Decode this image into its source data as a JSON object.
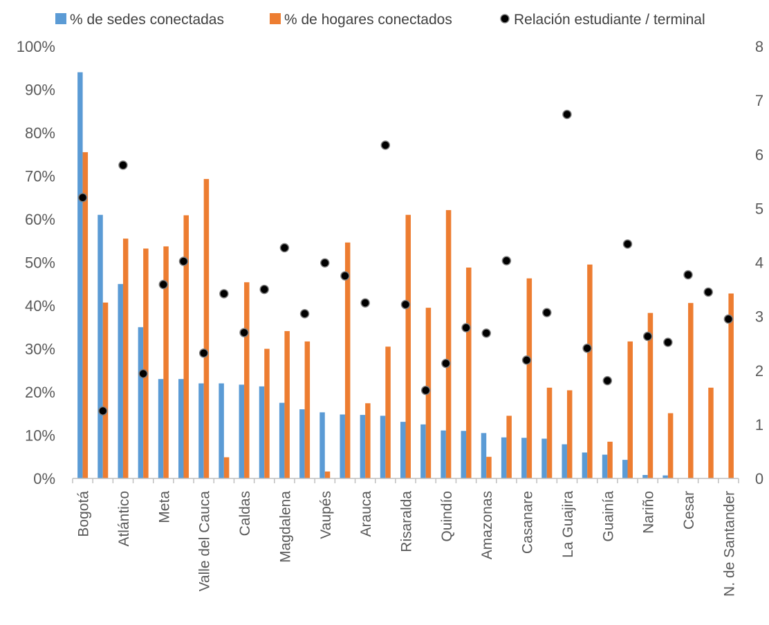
{
  "chart_data": {
    "type": "bar",
    "categories": [
      "Bogotá",
      "",
      "Atlántico",
      "",
      "Meta",
      "",
      "Valle del Cauca",
      "",
      "Caldas",
      "",
      "Magdalena",
      "",
      "Vaupés",
      "",
      "Arauca",
      "",
      "Risaralda",
      "",
      "Quindío",
      "",
      "Amazonas",
      "",
      "Casanare",
      "",
      "La Guajira",
      "",
      "Guainía",
      "",
      "Nariño",
      "",
      "Cesar",
      "",
      "N. de Santander"
    ],
    "series": [
      {
        "name": "% de sedes conectadas",
        "axis": "left",
        "chart_type": "bar",
        "color": "#5B9BD5",
        "values": [
          94,
          61,
          45,
          35,
          23,
          23,
          22,
          22,
          21.7,
          21.3,
          17.5,
          16,
          15.3,
          14.8,
          14.7,
          14.5,
          13.1,
          12.5,
          11.1,
          11,
          10.5,
          9.5,
          9.4,
          9.2,
          7.9,
          6,
          5.5,
          4.3,
          0.8,
          0.7,
          0,
          0,
          0
        ]
      },
      {
        "name": "% de hogares conectados",
        "axis": "left",
        "chart_type": "bar",
        "color": "#ED7D31",
        "values": [
          75.5,
          40.7,
          55.5,
          53.2,
          53.7,
          60.9,
          69.3,
          4.9,
          45.4,
          30,
          34.1,
          31.7,
          1.6,
          54.6,
          17.4,
          30.5,
          61,
          39.5,
          62.1,
          48.8,
          5,
          14.5,
          46.3,
          21,
          20.4,
          49.5,
          8.5,
          31.7,
          38.3,
          15.1,
          40.6,
          21,
          42.8
        ]
      },
      {
        "name": "Relación estudiante / terminal",
        "axis": "right",
        "chart_type": "scatter",
        "color": "#000000",
        "values": [
          5.2,
          1.25,
          5.8,
          1.94,
          3.59,
          4.02,
          2.32,
          3.42,
          2.7,
          3.5,
          4.27,
          3.05,
          3.99,
          3.75,
          3.25,
          6.17,
          3.22,
          1.63,
          2.13,
          2.79,
          2.69,
          4.03,
          2.19,
          3.07,
          6.74,
          2.41,
          1.81,
          4.34,
          2.63,
          2.52,
          3.77,
          3.45,
          2.95
        ]
      }
    ],
    "y_left": {
      "min": 0,
      "max": 100,
      "ticks": [
        "0%",
        "10%",
        "20%",
        "30%",
        "40%",
        "50%",
        "60%",
        "70%",
        "80%",
        "90%",
        "100%"
      ]
    },
    "y_right": {
      "min": 0,
      "max": 8,
      "ticks": [
        "0",
        "1",
        "2",
        "3",
        "4",
        "5",
        "6",
        "7",
        "8"
      ]
    },
    "legend_position": "top",
    "grid": false
  }
}
